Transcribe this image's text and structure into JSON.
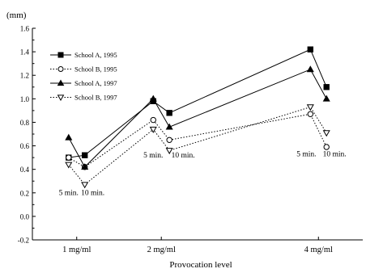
{
  "chart_data": {
    "type": "line",
    "title": "",
    "ylabel_unit": "(mm)",
    "xlabel": "Provocation level",
    "ylim": [
      -0.2,
      1.6
    ],
    "yticks": [
      "-0.2",
      "0.0",
      "0.2",
      "0.4",
      "0.6",
      "0.8",
      "1.0",
      "1.2",
      "1.4",
      "1.6"
    ],
    "x_groups": [
      {
        "label": "1 mg/ml",
        "x": [
          0.9,
          1.1
        ]
      },
      {
        "label": "2 mg/ml",
        "x": [
          1.95,
          2.15
        ]
      },
      {
        "label": "4 mg/ml",
        "x": [
          3.9,
          4.1
        ]
      }
    ],
    "time_labels": [
      {
        "text": "5 min.",
        "x": 0.9,
        "y": 0.18
      },
      {
        "text": "10 min.",
        "x": 1.2,
        "y": 0.18
      },
      {
        "text": "5 min.",
        "x": 1.95,
        "y": 0.5
      },
      {
        "text": "10 min.",
        "x": 2.32,
        "y": 0.5
      },
      {
        "text": "5 min.",
        "x": 3.85,
        "y": 0.51
      },
      {
        "text": "10 min.",
        "x": 4.2,
        "y": 0.51
      }
    ],
    "legend_position": "top-left",
    "series": [
      {
        "name": "School A, 1995",
        "marker": "square",
        "filled": true,
        "dash": "solid",
        "color": "#000000",
        "x": [
          0.9,
          1.1,
          1.95,
          2.15,
          3.9,
          4.1
        ],
        "y": [
          0.5,
          0.52,
          0.98,
          0.88,
          1.42,
          1.1
        ]
      },
      {
        "name": "School B, 1995",
        "marker": "circle",
        "filled": false,
        "dash": "dotted",
        "color": "#000000",
        "x": [
          0.9,
          1.1,
          1.95,
          2.15,
          3.9,
          4.1
        ],
        "y": [
          0.5,
          0.42,
          0.82,
          0.65,
          0.87,
          0.59
        ]
      },
      {
        "name": "School A, 1997",
        "marker": "triangle-up",
        "filled": true,
        "dash": "solid",
        "color": "#000000",
        "x": [
          0.9,
          1.1,
          1.95,
          2.15,
          3.9,
          4.1
        ],
        "y": [
          0.67,
          0.42,
          1.0,
          0.76,
          1.25,
          1.0
        ]
      },
      {
        "name": "School B, 1997",
        "marker": "triangle-down",
        "filled": false,
        "dash": "dotted",
        "color": "#000000",
        "x": [
          0.9,
          1.1,
          1.95,
          2.15,
          3.9,
          4.1
        ],
        "y": [
          0.44,
          0.27,
          0.74,
          0.56,
          0.93,
          0.71
        ]
      }
    ]
  }
}
